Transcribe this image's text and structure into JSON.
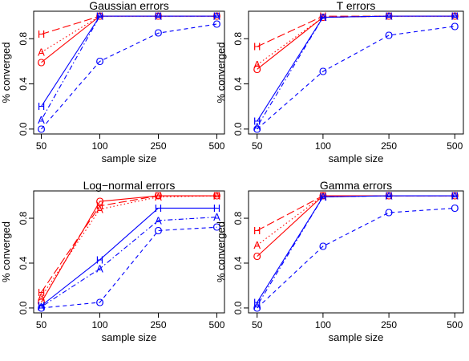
{
  "chart_data": [
    {
      "type": "line",
      "title": "Gaussian errors",
      "xlabel": "sample size",
      "ylabel": "% converged",
      "categories": [
        "50",
        "100",
        "250",
        "500"
      ],
      "ylim": [
        0,
        1
      ],
      "yticks": [
        "0.0",
        "0.4",
        "0.8"
      ],
      "grid": false,
      "series": [
        {
          "marker": "H",
          "color": "#ff0000",
          "style": "longdash",
          "values": [
            0.84,
            1.0,
            1.0,
            1.0
          ]
        },
        {
          "marker": "A",
          "color": "#ff0000",
          "style": "dotted",
          "values": [
            0.68,
            1.0,
            1.0,
            1.0
          ]
        },
        {
          "marker": "O",
          "color": "#ff0000",
          "style": "solid",
          "values": [
            0.59,
            1.0,
            1.0,
            1.0
          ]
        },
        {
          "marker": "H",
          "color": "#0000ff",
          "style": "solid",
          "values": [
            0.2,
            1.0,
            1.0,
            1.0
          ]
        },
        {
          "marker": "A",
          "color": "#0000ff",
          "style": "dotdash",
          "values": [
            0.08,
            1.0,
            1.0,
            1.0
          ]
        },
        {
          "marker": "O",
          "color": "#0000ff",
          "style": "dashed",
          "values": [
            0.0,
            0.6,
            0.85,
            0.93
          ]
        }
      ]
    },
    {
      "type": "line",
      "title": "T errors",
      "xlabel": "sample size",
      "ylabel": "% converged",
      "categories": [
        "50",
        "100",
        "250",
        "500"
      ],
      "ylim": [
        0,
        1
      ],
      "yticks": [
        "0.0",
        "0.4",
        "0.8"
      ],
      "grid": false,
      "series": [
        {
          "marker": "H",
          "color": "#ff0000",
          "style": "longdash",
          "values": [
            0.73,
            1.0,
            1.0,
            1.0
          ]
        },
        {
          "marker": "A",
          "color": "#ff0000",
          "style": "dotted",
          "values": [
            0.57,
            0.99,
            1.0,
            1.0
          ]
        },
        {
          "marker": "O",
          "color": "#ff0000",
          "style": "solid",
          "values": [
            0.53,
            0.99,
            1.0,
            1.0
          ]
        },
        {
          "marker": "H",
          "color": "#0000ff",
          "style": "solid",
          "values": [
            0.07,
            0.99,
            1.0,
            1.0
          ]
        },
        {
          "marker": "A",
          "color": "#0000ff",
          "style": "dotdash",
          "values": [
            0.02,
            0.99,
            1.0,
            1.0
          ]
        },
        {
          "marker": "O",
          "color": "#0000ff",
          "style": "dashed",
          "values": [
            0.0,
            0.51,
            0.83,
            0.91
          ]
        }
      ]
    },
    {
      "type": "line",
      "title": "Log−normal errors",
      "xlabel": "sample size",
      "ylabel": "% converged",
      "categories": [
        "50",
        "100",
        "250",
        "500"
      ],
      "ylim": [
        0,
        1
      ],
      "yticks": [
        "0.0",
        "0.4",
        "0.8"
      ],
      "grid": false,
      "series": [
        {
          "marker": "H",
          "color": "#ff0000",
          "style": "longdash",
          "values": [
            0.14,
            0.91,
            1.0,
            1.0
          ]
        },
        {
          "marker": "A",
          "color": "#ff0000",
          "style": "dotted",
          "values": [
            0.1,
            0.88,
            0.99,
            1.0
          ]
        },
        {
          "marker": "O",
          "color": "#ff0000",
          "style": "solid",
          "values": [
            0.05,
            0.95,
            1.0,
            1.0
          ]
        },
        {
          "marker": "H",
          "color": "#0000ff",
          "style": "solid",
          "values": [
            0.02,
            0.43,
            0.89,
            0.89
          ]
        },
        {
          "marker": "A",
          "color": "#0000ff",
          "style": "dotdash",
          "values": [
            0.01,
            0.35,
            0.78,
            0.81
          ]
        },
        {
          "marker": "O",
          "color": "#0000ff",
          "style": "dashed",
          "values": [
            0.0,
            0.05,
            0.69,
            0.72
          ]
        }
      ]
    },
    {
      "type": "line",
      "title": "Gamma errors",
      "xlabel": "sample size",
      "ylabel": "% converged",
      "categories": [
        "50",
        "100",
        "250",
        "500"
      ],
      "ylim": [
        0,
        1
      ],
      "yticks": [
        "0.0",
        "0.4",
        "0.8"
      ],
      "grid": false,
      "series": [
        {
          "marker": "H",
          "color": "#ff0000",
          "style": "longdash",
          "values": [
            0.69,
            1.0,
            1.0,
            1.0
          ]
        },
        {
          "marker": "A",
          "color": "#ff0000",
          "style": "dotted",
          "values": [
            0.56,
            1.0,
            1.0,
            1.0
          ]
        },
        {
          "marker": "O",
          "color": "#ff0000",
          "style": "solid",
          "values": [
            0.46,
            1.0,
            1.0,
            1.0
          ]
        },
        {
          "marker": "H",
          "color": "#0000ff",
          "style": "solid",
          "values": [
            0.05,
            0.99,
            1.0,
            1.0
          ]
        },
        {
          "marker": "A",
          "color": "#0000ff",
          "style": "dotdash",
          "values": [
            0.02,
            0.99,
            1.0,
            1.0
          ]
        },
        {
          "marker": "O",
          "color": "#0000ff",
          "style": "dashed",
          "values": [
            0.0,
            0.55,
            0.85,
            0.89
          ]
        }
      ]
    }
  ]
}
